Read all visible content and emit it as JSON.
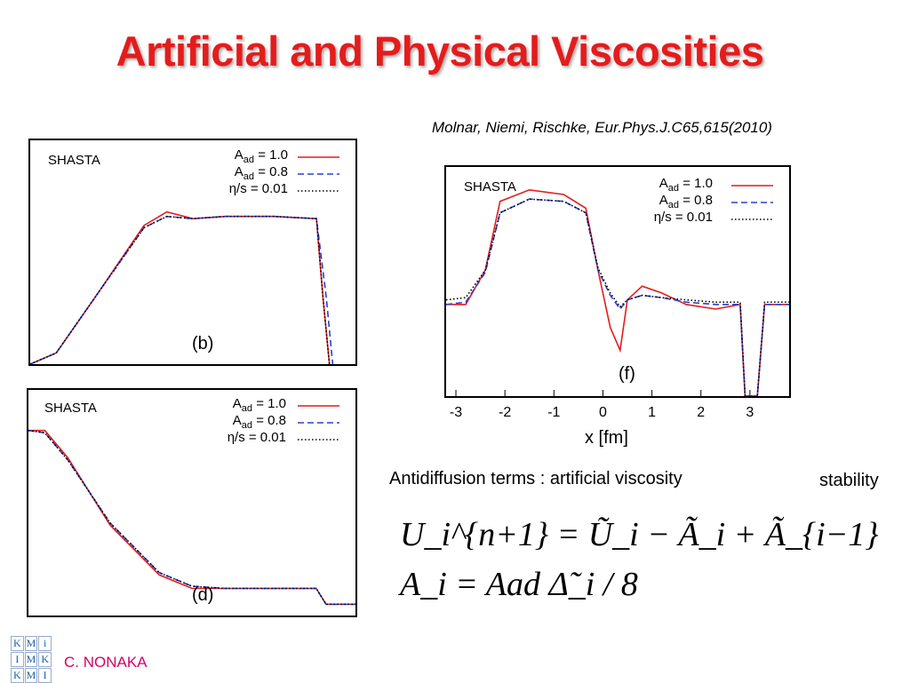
{
  "title": "Artificial and  Physical Viscosities",
  "citation": "Molnar, Niemi, Rischke, Eur.Phys.J.C65,615(2010)",
  "legend": {
    "method": "SHASTA",
    "entries": [
      {
        "label_main": "A",
        "label_sub": "ad",
        "label_rest": " = 1.0",
        "color": "#e41c1c",
        "style": "solid"
      },
      {
        "label_main": "A",
        "label_sub": "ad",
        "label_rest": " = 0.8",
        "color": "#2a3fd4",
        "style": "dashed"
      },
      {
        "label_main": "η/s = 0.01",
        "label_sub": "",
        "label_rest": "",
        "color": "#000000",
        "style": "dotted"
      }
    ]
  },
  "panels": {
    "b": {
      "tag": "(b)"
    },
    "d": {
      "tag": "(d)"
    },
    "f": {
      "tag": "(f)",
      "xlabel": "x [fm]",
      "xticks": [
        "-3",
        "-2",
        "-1",
        "0",
        "1",
        "2",
        "3"
      ]
    }
  },
  "chart_data": [
    {
      "type": "line",
      "panel": "(b)",
      "title": "SHASTA",
      "xlabel": "",
      "ylabel": "",
      "series": [
        {
          "name": "A_ad = 1.0",
          "x": [
            0,
            0.08,
            0.2,
            0.35,
            0.42,
            0.5,
            0.6,
            0.75,
            0.88,
            0.9,
            0.92
          ],
          "y": [
            0,
            0.05,
            0.3,
            0.62,
            0.68,
            0.65,
            0.66,
            0.66,
            0.65,
            0.3,
            0
          ]
        },
        {
          "name": "A_ad = 0.8",
          "x": [
            0,
            0.08,
            0.2,
            0.35,
            0.42,
            0.5,
            0.6,
            0.75,
            0.88,
            0.91,
            0.93
          ],
          "y": [
            0,
            0.05,
            0.3,
            0.61,
            0.66,
            0.65,
            0.66,
            0.66,
            0.65,
            0.3,
            0
          ]
        },
        {
          "name": "η/s = 0.01",
          "x": [
            0,
            0.08,
            0.2,
            0.35,
            0.42,
            0.5,
            0.6,
            0.75,
            0.88,
            0.9,
            0.92
          ],
          "y": [
            0,
            0.05,
            0.3,
            0.61,
            0.66,
            0.65,
            0.66,
            0.66,
            0.65,
            0.3,
            0
          ]
        }
      ]
    },
    {
      "type": "line",
      "panel": "(d)",
      "title": "SHASTA",
      "xlabel": "",
      "ylabel": "",
      "series": [
        {
          "name": "A_ad = 1.0",
          "x": [
            0,
            0.05,
            0.12,
            0.25,
            0.4,
            0.5,
            0.6,
            0.75,
            0.88,
            0.91,
            1
          ],
          "y": [
            0.82,
            0.82,
            0.7,
            0.4,
            0.18,
            0.12,
            0.12,
            0.12,
            0.12,
            0.05,
            0.05
          ]
        },
        {
          "name": "A_ad = 0.8",
          "x": [
            0,
            0.05,
            0.12,
            0.25,
            0.4,
            0.5,
            0.6,
            0.75,
            0.88,
            0.91,
            1
          ],
          "y": [
            0.82,
            0.81,
            0.69,
            0.41,
            0.19,
            0.13,
            0.12,
            0.12,
            0.12,
            0.05,
            0.05
          ]
        },
        {
          "name": "η/s = 0.01",
          "x": [
            0,
            0.05,
            0.12,
            0.25,
            0.4,
            0.5,
            0.6,
            0.75,
            0.88,
            0.91,
            1
          ],
          "y": [
            0.82,
            0.81,
            0.69,
            0.41,
            0.19,
            0.13,
            0.12,
            0.12,
            0.12,
            0.05,
            0.05
          ]
        }
      ]
    },
    {
      "type": "line",
      "panel": "(f)",
      "title": "SHASTA",
      "xlabel": "x [fm]",
      "ylabel": "",
      "xlim": [
        -3.2,
        3.8
      ],
      "series": [
        {
          "name": "A_ad = 1.0",
          "x": [
            -3.2,
            -2.8,
            -2.4,
            -2.1,
            -1.5,
            -0.8,
            -0.35,
            -0.1,
            0.15,
            0.35,
            0.5,
            0.8,
            1.2,
            1.7,
            2.3,
            2.8,
            2.9,
            3.15,
            3.3,
            3.8
          ],
          "y": [
            0.4,
            0.4,
            0.55,
            0.85,
            0.9,
            0.88,
            0.82,
            0.55,
            0.3,
            0.2,
            0.42,
            0.48,
            0.45,
            0.4,
            0.38,
            0.4,
            0.0,
            0.0,
            0.4,
            0.4
          ]
        },
        {
          "name": "A_ad = 0.8",
          "x": [
            -3.2,
            -2.8,
            -2.4,
            -2.1,
            -1.5,
            -0.8,
            -0.35,
            -0.1,
            0.15,
            0.35,
            0.5,
            0.8,
            1.2,
            1.7,
            2.3,
            2.8,
            2.9,
            3.15,
            3.3,
            3.8
          ],
          "y": [
            0.4,
            0.41,
            0.54,
            0.8,
            0.86,
            0.85,
            0.8,
            0.55,
            0.44,
            0.38,
            0.42,
            0.44,
            0.43,
            0.41,
            0.4,
            0.4,
            0.0,
            0.0,
            0.4,
            0.4
          ]
        },
        {
          "name": "η/s = 0.01",
          "x": [
            -3.2,
            -2.8,
            -2.4,
            -2.1,
            -1.5,
            -0.8,
            -0.35,
            -0.1,
            0.15,
            0.35,
            0.5,
            0.8,
            1.2,
            1.7,
            2.3,
            2.8,
            2.9,
            3.15,
            3.3,
            3.8
          ],
          "y": [
            0.42,
            0.43,
            0.55,
            0.8,
            0.86,
            0.85,
            0.8,
            0.56,
            0.45,
            0.39,
            0.42,
            0.44,
            0.43,
            0.42,
            0.41,
            0.41,
            0.0,
            0.0,
            0.41,
            0.41
          ]
        }
      ]
    }
  ],
  "note_antidiffusion": "Antidiffusion terms : artificial viscosity",
  "note_stability": "stability",
  "formula_1": "U_i^{n+1} = Ũ_i − Ã_i + Ã_{i−1}",
  "formula_2": "A_i = Aad Δ̃_i / 8",
  "logo_letters": [
    "K",
    "M",
    "i",
    "I",
    "M",
    "K",
    "K",
    "M",
    "I"
  ],
  "author": "C. NONAKA"
}
